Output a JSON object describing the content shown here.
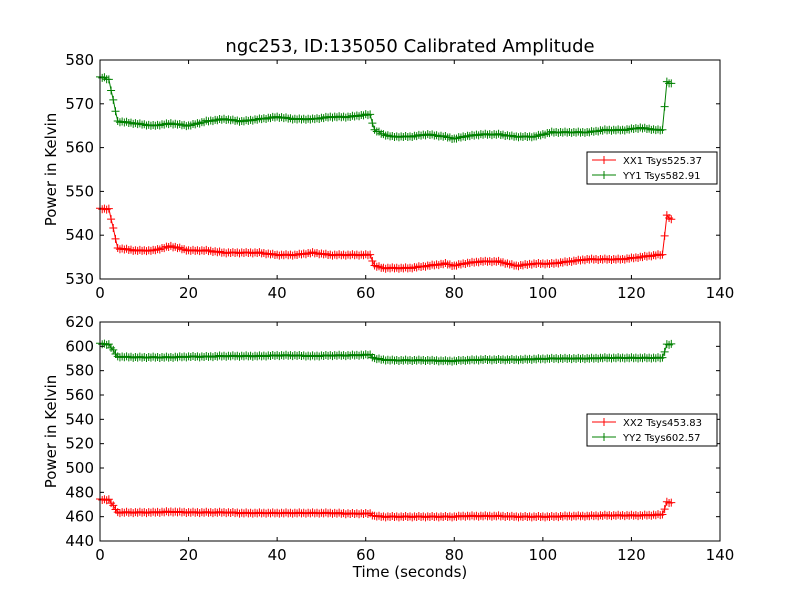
{
  "chart_data": [
    {
      "type": "line",
      "title": "ngc253, ID:135050 Calibrated Amplitude",
      "xlabel": "",
      "ylabel": "Power in Kelvin",
      "xlim": [
        0,
        140
      ],
      "ylim": [
        530,
        580
      ],
      "xticks": [
        "0",
        "20",
        "40",
        "60",
        "80",
        "100",
        "120",
        "140"
      ],
      "yticks": [
        "530",
        "540",
        "550",
        "560",
        "570",
        "580"
      ],
      "grid": false,
      "legend_position": "right",
      "marker": "+",
      "series": [
        {
          "name": "XX1 Tsys525.37",
          "color": "#ff0000",
          "x": [
            0,
            1,
            2,
            4,
            8,
            12,
            16,
            20,
            24,
            28,
            32,
            36,
            40,
            44,
            48,
            52,
            56,
            60,
            61,
            62,
            64,
            66,
            70,
            74,
            78,
            80,
            82,
            86,
            90,
            94,
            98,
            102,
            106,
            110,
            114,
            118,
            122,
            126,
            127,
            128,
            129
          ],
          "y": [
            546,
            546,
            546,
            537,
            536.5,
            536.5,
            537.5,
            536.5,
            536.5,
            536,
            536,
            536,
            535.5,
            535.5,
            536,
            535.5,
            535.5,
            535.5,
            535.5,
            533,
            532.5,
            532.5,
            532.5,
            533,
            533.5,
            533,
            533.5,
            534,
            534,
            533,
            533.5,
            533.5,
            534,
            534.5,
            534.5,
            534.5,
            535,
            535.5,
            535.5,
            544.5,
            543.5
          ]
        },
        {
          "name": "YY1 Tsys582.91",
          "color": "#008000",
          "x": [
            0,
            1,
            2,
            4,
            8,
            12,
            16,
            20,
            24,
            28,
            32,
            36,
            40,
            44,
            48,
            52,
            56,
            60,
            61,
            62,
            64,
            66,
            70,
            74,
            78,
            80,
            82,
            86,
            90,
            94,
            98,
            102,
            106,
            110,
            114,
            118,
            122,
            126,
            127,
            128,
            129
          ],
          "y": [
            576,
            576,
            575.5,
            566,
            565.5,
            565,
            565.5,
            565,
            566,
            566.5,
            566,
            566.5,
            567,
            566.5,
            566.5,
            567,
            567,
            567.5,
            567.5,
            564,
            563,
            562.5,
            562.5,
            563,
            562.5,
            562,
            562.5,
            563,
            563,
            562.5,
            562.5,
            563.5,
            563.5,
            563.5,
            564,
            564,
            564.5,
            564,
            564,
            575,
            574.5
          ]
        }
      ]
    },
    {
      "type": "line",
      "title": "",
      "xlabel": "Time (seconds)",
      "ylabel": "Power in Kelvin",
      "xlim": [
        0,
        140
      ],
      "ylim": [
        440,
        620
      ],
      "xticks": [
        "0",
        "20",
        "40",
        "60",
        "80",
        "100",
        "120",
        "140"
      ],
      "yticks": [
        "440",
        "460",
        "480",
        "500",
        "520",
        "540",
        "560",
        "580",
        "600",
        "620"
      ],
      "grid": false,
      "legend_position": "right",
      "marker": "+",
      "series": [
        {
          "name": "XX2 Tsys453.83",
          "color": "#ff0000",
          "x": [
            0,
            1,
            2,
            4,
            8,
            12,
            16,
            20,
            24,
            28,
            32,
            36,
            40,
            44,
            48,
            52,
            56,
            60,
            61,
            62,
            64,
            66,
            70,
            74,
            78,
            80,
            82,
            86,
            90,
            94,
            98,
            102,
            106,
            110,
            114,
            118,
            122,
            126,
            127,
            128,
            129
          ],
          "y": [
            474,
            474,
            474,
            463.5,
            463.5,
            463.5,
            464,
            463.5,
            463.5,
            463.5,
            463,
            463,
            463,
            463,
            463,
            463,
            462.5,
            462.5,
            462.5,
            460.5,
            460,
            460,
            460,
            460,
            460,
            460,
            460.5,
            460.5,
            460.5,
            460,
            460,
            460,
            460.5,
            460.5,
            461,
            461,
            461,
            461.5,
            461.5,
            472,
            471
          ]
        },
        {
          "name": "YY2 Tsys602.57",
          "color": "#008000",
          "x": [
            0,
            1,
            2,
            4,
            8,
            12,
            16,
            20,
            24,
            28,
            32,
            36,
            40,
            44,
            48,
            52,
            56,
            60,
            61,
            62,
            64,
            66,
            70,
            74,
            78,
            80,
            82,
            86,
            90,
            94,
            98,
            102,
            106,
            110,
            114,
            118,
            122,
            126,
            127,
            128,
            129
          ],
          "y": [
            602,
            602,
            601.5,
            591.5,
            591,
            591,
            591,
            591.5,
            591.5,
            592,
            592,
            592,
            592.5,
            592.5,
            592,
            592.5,
            592.5,
            593,
            593,
            590,
            589,
            588.5,
            588.5,
            588.5,
            588,
            588,
            588.5,
            589,
            589,
            589,
            589.5,
            590,
            590,
            590,
            590.5,
            590.5,
            590.5,
            590.5,
            590.5,
            601.5,
            601.5
          ]
        }
      ]
    }
  ]
}
